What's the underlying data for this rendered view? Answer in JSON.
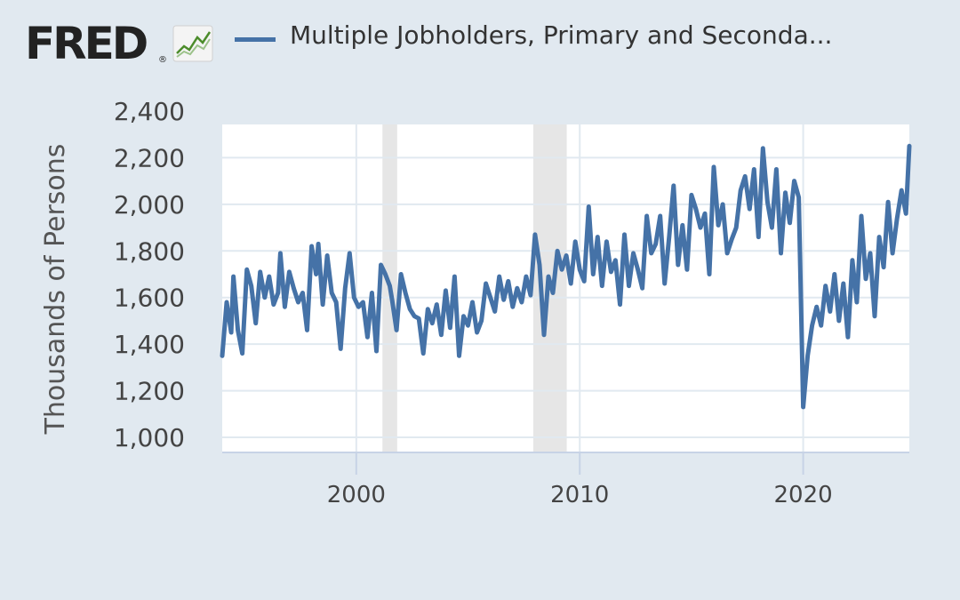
{
  "header": {
    "logo": "FRED",
    "logo_mark": "®",
    "logo_icon": "line-graph-icon",
    "legend_label": "Multiple Jobholders, Primary and Seconda..."
  },
  "colors": {
    "background": "#e1e9f0",
    "plot_background": "#ffffff",
    "series": "#4572a7",
    "grid": "#e1e9f0",
    "recession": "#e6e6e6"
  },
  "chart_data": {
    "type": "line",
    "title": "",
    "xlabel": "",
    "ylabel": "Thousands of Persons",
    "xlim": [
      1994.0,
      2024.75
    ],
    "ylim": [
      1000,
      2400
    ],
    "y_ticks": [
      "1,000",
      "1,200",
      "1,400",
      "1,600",
      "1,800",
      "2,000",
      "2,200",
      "2,400"
    ],
    "y_tick_values": [
      1000,
      1200,
      1400,
      1600,
      1800,
      2000,
      2200,
      2400
    ],
    "x_ticks": [
      "2000",
      "2010",
      "2020"
    ],
    "x_tick_values": [
      2000,
      2010,
      2020
    ],
    "grid": true,
    "legend": "top",
    "recessions": [
      [
        2001.17,
        2001.83
      ],
      [
        2007.92,
        2009.42
      ]
    ],
    "series": [
      {
        "name": "Multiple Jobholders, Primary and Seconda...",
        "points": [
          [
            1994.0,
            1350
          ],
          [
            1994.2,
            1580
          ],
          [
            1994.4,
            1450
          ],
          [
            1994.5,
            1690
          ],
          [
            1994.7,
            1460
          ],
          [
            1994.9,
            1360
          ],
          [
            1995.1,
            1720
          ],
          [
            1995.3,
            1650
          ],
          [
            1995.5,
            1490
          ],
          [
            1995.7,
            1710
          ],
          [
            1995.9,
            1600
          ],
          [
            1996.1,
            1690
          ],
          [
            1996.3,
            1570
          ],
          [
            1996.5,
            1620
          ],
          [
            1996.6,
            1790
          ],
          [
            1996.8,
            1560
          ],
          [
            1997.0,
            1710
          ],
          [
            1997.2,
            1640
          ],
          [
            1997.4,
            1580
          ],
          [
            1997.6,
            1620
          ],
          [
            1997.8,
            1460
          ],
          [
            1998.0,
            1820
          ],
          [
            1998.2,
            1700
          ],
          [
            1998.3,
            1830
          ],
          [
            1998.5,
            1570
          ],
          [
            1998.7,
            1780
          ],
          [
            1998.9,
            1620
          ],
          [
            1999.1,
            1580
          ],
          [
            1999.3,
            1380
          ],
          [
            1999.5,
            1640
          ],
          [
            1999.7,
            1790
          ],
          [
            1999.9,
            1600
          ],
          [
            2000.1,
            1560
          ],
          [
            2000.3,
            1580
          ],
          [
            2000.5,
            1430
          ],
          [
            2000.7,
            1620
          ],
          [
            2000.9,
            1370
          ],
          [
            2001.1,
            1740
          ],
          [
            2001.3,
            1700
          ],
          [
            2001.5,
            1650
          ],
          [
            2001.6,
            1590
          ],
          [
            2001.8,
            1460
          ],
          [
            2002.0,
            1700
          ],
          [
            2002.2,
            1620
          ],
          [
            2002.4,
            1550
          ],
          [
            2002.6,
            1520
          ],
          [
            2002.8,
            1510
          ],
          [
            2003.0,
            1360
          ],
          [
            2003.2,
            1550
          ],
          [
            2003.4,
            1490
          ],
          [
            2003.6,
            1570
          ],
          [
            2003.8,
            1440
          ],
          [
            2004.0,
            1630
          ],
          [
            2004.2,
            1470
          ],
          [
            2004.4,
            1690
          ],
          [
            2004.6,
            1350
          ],
          [
            2004.8,
            1520
          ],
          [
            2005.0,
            1480
          ],
          [
            2005.2,
            1580
          ],
          [
            2005.4,
            1450
          ],
          [
            2005.6,
            1500
          ],
          [
            2005.8,
            1660
          ],
          [
            2006.0,
            1600
          ],
          [
            2006.2,
            1540
          ],
          [
            2006.4,
            1690
          ],
          [
            2006.6,
            1590
          ],
          [
            2006.8,
            1670
          ],
          [
            2007.0,
            1560
          ],
          [
            2007.2,
            1640
          ],
          [
            2007.4,
            1580
          ],
          [
            2007.6,
            1690
          ],
          [
            2007.8,
            1610
          ],
          [
            2008.0,
            1870
          ],
          [
            2008.2,
            1740
          ],
          [
            2008.4,
            1440
          ],
          [
            2008.6,
            1690
          ],
          [
            2008.8,
            1620
          ],
          [
            2009.0,
            1800
          ],
          [
            2009.2,
            1720
          ],
          [
            2009.4,
            1780
          ],
          [
            2009.6,
            1660
          ],
          [
            2009.8,
            1840
          ],
          [
            2010.0,
            1720
          ],
          [
            2010.2,
            1670
          ],
          [
            2010.4,
            1990
          ],
          [
            2010.6,
            1700
          ],
          [
            2010.8,
            1860
          ],
          [
            2011.0,
            1650
          ],
          [
            2011.2,
            1840
          ],
          [
            2011.4,
            1710
          ],
          [
            2011.6,
            1760
          ],
          [
            2011.8,
            1570
          ],
          [
            2012.0,
            1870
          ],
          [
            2012.2,
            1650
          ],
          [
            2012.4,
            1790
          ],
          [
            2012.6,
            1720
          ],
          [
            2012.8,
            1640
          ],
          [
            2013.0,
            1950
          ],
          [
            2013.2,
            1790
          ],
          [
            2013.4,
            1830
          ],
          [
            2013.6,
            1950
          ],
          [
            2013.8,
            1660
          ],
          [
            2014.0,
            1860
          ],
          [
            2014.2,
            2080
          ],
          [
            2014.4,
            1740
          ],
          [
            2014.6,
            1910
          ],
          [
            2014.8,
            1720
          ],
          [
            2015.0,
            2040
          ],
          [
            2015.2,
            1980
          ],
          [
            2015.4,
            1900
          ],
          [
            2015.6,
            1960
          ],
          [
            2015.8,
            1700
          ],
          [
            2016.0,
            2160
          ],
          [
            2016.2,
            1910
          ],
          [
            2016.4,
            2000
          ],
          [
            2016.6,
            1790
          ],
          [
            2016.8,
            1850
          ],
          [
            2017.0,
            1900
          ],
          [
            2017.2,
            2060
          ],
          [
            2017.4,
            2120
          ],
          [
            2017.6,
            1980
          ],
          [
            2017.8,
            2150
          ],
          [
            2018.0,
            1860
          ],
          [
            2018.2,
            2240
          ],
          [
            2018.4,
            2010
          ],
          [
            2018.6,
            1900
          ],
          [
            2018.8,
            2150
          ],
          [
            2019.0,
            1790
          ],
          [
            2019.2,
            2050
          ],
          [
            2019.4,
            1920
          ],
          [
            2019.6,
            2100
          ],
          [
            2019.8,
            2030
          ],
          [
            2020.0,
            1130
          ],
          [
            2020.2,
            1350
          ],
          [
            2020.4,
            1480
          ],
          [
            2020.6,
            1560
          ],
          [
            2020.8,
            1480
          ],
          [
            2021.0,
            1650
          ],
          [
            2021.2,
            1540
          ],
          [
            2021.4,
            1700
          ],
          [
            2021.6,
            1500
          ],
          [
            2021.8,
            1660
          ],
          [
            2022.0,
            1430
          ],
          [
            2022.2,
            1760
          ],
          [
            2022.4,
            1580
          ],
          [
            2022.6,
            1950
          ],
          [
            2022.8,
            1680
          ],
          [
            2023.0,
            1790
          ],
          [
            2023.2,
            1520
          ],
          [
            2023.4,
            1860
          ],
          [
            2023.6,
            1730
          ],
          [
            2023.8,
            2010
          ],
          [
            2024.0,
            1790
          ],
          [
            2024.2,
            1940
          ],
          [
            2024.4,
            2060
          ],
          [
            2024.6,
            1960
          ],
          [
            2024.75,
            2250
          ]
        ]
      }
    ]
  }
}
